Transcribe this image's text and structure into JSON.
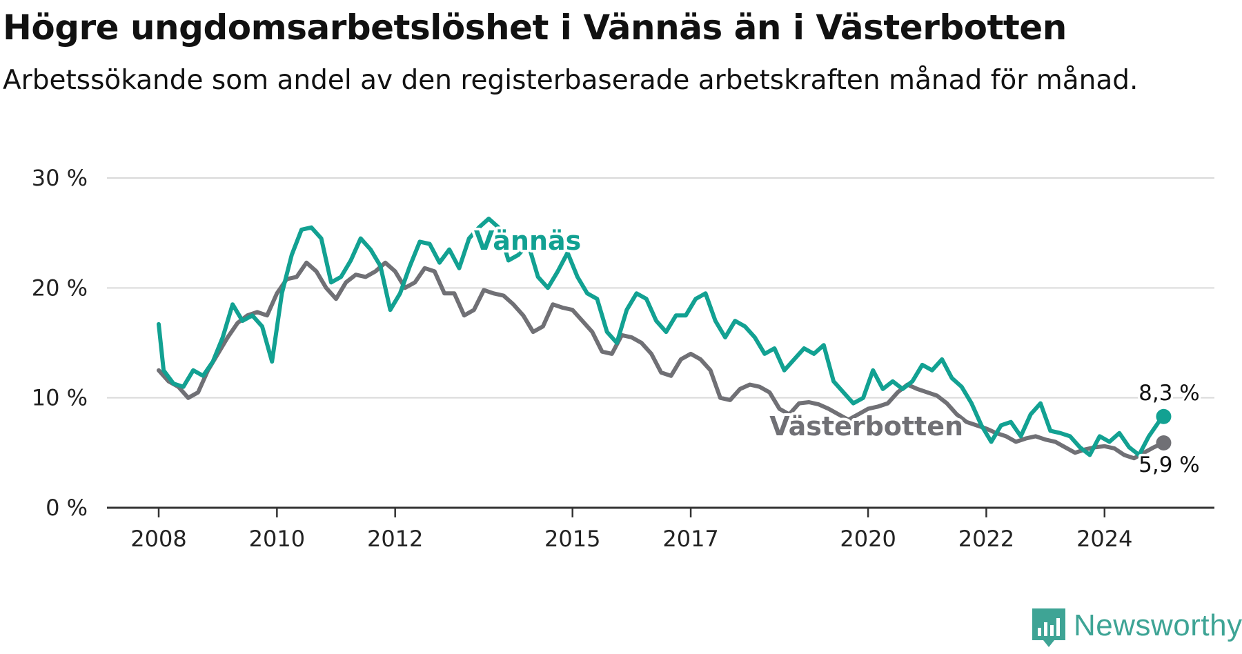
{
  "title": "Högre ungdomsarbetslöshet i Vännäs än i Västerbotten",
  "subtitle": "Arbetssökande som andel av den registerbaserade arbetskraften månad för månad.",
  "logo": {
    "text": "Newsworthy",
    "icon": "bar-chart-badge-icon"
  },
  "chart_data": {
    "type": "line",
    "title": "Högre ungdomsarbetslöshet i Vännäs än i Västerbotten",
    "subtitle": "Arbetssökande som andel av den registerbaserade arbetskraften månad för månad.",
    "ylim": [
      0,
      30
    ],
    "yticks": [
      0,
      10,
      20,
      30
    ],
    "ytick_labels": [
      "0 %",
      "10 %",
      "20 %",
      "30 %"
    ],
    "xlim": [
      "2008-01",
      "2025-12"
    ],
    "xticks": [
      "2008-01",
      "2010-01",
      "2012-01",
      "2015-01",
      "2017-01",
      "2020-01",
      "2022-01",
      "2024-01"
    ],
    "xtick_labels": [
      "2008",
      "2010",
      "2012",
      "2015",
      "2017",
      "2020",
      "2022",
      "2024"
    ],
    "grid": true,
    "legend": "direct labels on lines",
    "series": [
      {
        "name": "Västerbotten",
        "color": "#707075",
        "end_label": "5,9 %",
        "points": [
          [
            "2008-01",
            12.5
          ],
          [
            "2008-03",
            11.5
          ],
          [
            "2008-05",
            11.0
          ],
          [
            "2008-07",
            10.0
          ],
          [
            "2008-09",
            10.5
          ],
          [
            "2008-11",
            12.5
          ],
          [
            "2009-01",
            14.0
          ],
          [
            "2009-03",
            15.5
          ],
          [
            "2009-05",
            16.8
          ],
          [
            "2009-07",
            17.5
          ],
          [
            "2009-09",
            17.8
          ],
          [
            "2009-11",
            17.5
          ],
          [
            "2010-01",
            19.5
          ],
          [
            "2010-03",
            20.8
          ],
          [
            "2010-05",
            21.0
          ],
          [
            "2010-07",
            22.3
          ],
          [
            "2010-09",
            21.5
          ],
          [
            "2010-11",
            20.0
          ],
          [
            "2011-01",
            19.0
          ],
          [
            "2011-03",
            20.5
          ],
          [
            "2011-05",
            21.2
          ],
          [
            "2011-07",
            21.0
          ],
          [
            "2011-09",
            21.5
          ],
          [
            "2011-11",
            22.3
          ],
          [
            "2012-01",
            21.5
          ],
          [
            "2012-03",
            20.0
          ],
          [
            "2012-05",
            20.5
          ],
          [
            "2012-07",
            21.8
          ],
          [
            "2012-09",
            21.5
          ],
          [
            "2012-11",
            19.5
          ],
          [
            "2013-01",
            19.5
          ],
          [
            "2013-03",
            17.5
          ],
          [
            "2013-05",
            18.0
          ],
          [
            "2013-07",
            19.8
          ],
          [
            "2013-09",
            19.5
          ],
          [
            "2013-11",
            19.3
          ],
          [
            "2014-01",
            18.5
          ],
          [
            "2014-03",
            17.5
          ],
          [
            "2014-05",
            16.0
          ],
          [
            "2014-07",
            16.5
          ],
          [
            "2014-09",
            18.5
          ],
          [
            "2014-11",
            18.2
          ],
          [
            "2015-01",
            18.0
          ],
          [
            "2015-03",
            17.0
          ],
          [
            "2015-05",
            16.0
          ],
          [
            "2015-07",
            14.2
          ],
          [
            "2015-09",
            14.0
          ],
          [
            "2015-11",
            15.7
          ],
          [
            "2016-01",
            15.5
          ],
          [
            "2016-03",
            15.0
          ],
          [
            "2016-05",
            14.0
          ],
          [
            "2016-07",
            12.3
          ],
          [
            "2016-09",
            12.0
          ],
          [
            "2016-11",
            13.5
          ],
          [
            "2017-01",
            14.0
          ],
          [
            "2017-03",
            13.5
          ],
          [
            "2017-05",
            12.5
          ],
          [
            "2017-07",
            10.0
          ],
          [
            "2017-09",
            9.8
          ],
          [
            "2017-11",
            10.8
          ],
          [
            "2018-01",
            11.2
          ],
          [
            "2018-03",
            11.0
          ],
          [
            "2018-05",
            10.5
          ],
          [
            "2018-07",
            9.0
          ],
          [
            "2018-09",
            8.5
          ],
          [
            "2018-11",
            9.5
          ],
          [
            "2019-01",
            9.6
          ],
          [
            "2019-03",
            9.4
          ],
          [
            "2019-05",
            9.0
          ],
          [
            "2019-07",
            8.5
          ],
          [
            "2019-09",
            8.0
          ],
          [
            "2019-11",
            8.5
          ],
          [
            "2020-01",
            9.0
          ],
          [
            "2020-03",
            9.2
          ],
          [
            "2020-05",
            9.5
          ],
          [
            "2020-07",
            10.5
          ],
          [
            "2020-09",
            11.2
          ],
          [
            "2020-11",
            10.8
          ],
          [
            "2021-01",
            10.5
          ],
          [
            "2021-03",
            10.2
          ],
          [
            "2021-05",
            9.5
          ],
          [
            "2021-07",
            8.5
          ],
          [
            "2021-09",
            7.8
          ],
          [
            "2021-11",
            7.5
          ],
          [
            "2022-01",
            7.2
          ],
          [
            "2022-03",
            6.8
          ],
          [
            "2022-05",
            6.5
          ],
          [
            "2022-07",
            6.0
          ],
          [
            "2022-09",
            6.3
          ],
          [
            "2022-11",
            6.5
          ],
          [
            "2023-01",
            6.2
          ],
          [
            "2023-03",
            6.0
          ],
          [
            "2023-05",
            5.5
          ],
          [
            "2023-07",
            5.0
          ],
          [
            "2023-09",
            5.3
          ],
          [
            "2023-11",
            5.5
          ],
          [
            "2024-01",
            5.6
          ],
          [
            "2024-03",
            5.4
          ],
          [
            "2024-05",
            4.8
          ],
          [
            "2024-07",
            4.5
          ],
          [
            "2024-09",
            5.0
          ],
          [
            "2024-11",
            5.5
          ],
          [
            "2025-01",
            5.9
          ]
        ]
      },
      {
        "name": "Vännäs",
        "color": "#12a192",
        "end_label": "8,3 %",
        "points": [
          [
            "2008-01",
            16.7
          ],
          [
            "2008-02",
            12.5
          ],
          [
            "2008-04",
            11.3
          ],
          [
            "2008-06",
            11.0
          ],
          [
            "2008-08",
            12.5
          ],
          [
            "2008-10",
            12.0
          ],
          [
            "2008-12",
            13.3
          ],
          [
            "2009-02",
            15.5
          ],
          [
            "2009-04",
            18.5
          ],
          [
            "2009-06",
            17.0
          ],
          [
            "2009-08",
            17.5
          ],
          [
            "2009-10",
            16.5
          ],
          [
            "2009-12",
            13.3
          ],
          [
            "2010-02",
            19.5
          ],
          [
            "2010-04",
            23.0
          ],
          [
            "2010-06",
            25.3
          ],
          [
            "2010-08",
            25.5
          ],
          [
            "2010-10",
            24.5
          ],
          [
            "2010-12",
            20.5
          ],
          [
            "2011-02",
            21.0
          ],
          [
            "2011-04",
            22.5
          ],
          [
            "2011-06",
            24.5
          ],
          [
            "2011-08",
            23.5
          ],
          [
            "2011-10",
            22.0
          ],
          [
            "2011-12",
            18.0
          ],
          [
            "2012-02",
            19.5
          ],
          [
            "2012-04",
            22.0
          ],
          [
            "2012-06",
            24.2
          ],
          [
            "2012-08",
            24.0
          ],
          [
            "2012-10",
            22.3
          ],
          [
            "2012-12",
            23.5
          ],
          [
            "2013-02",
            21.8
          ],
          [
            "2013-04",
            24.5
          ],
          [
            "2013-06",
            25.5
          ],
          [
            "2013-08",
            26.3
          ],
          [
            "2013-10",
            25.5
          ],
          [
            "2013-12",
            22.5
          ],
          [
            "2014-02",
            23.0
          ],
          [
            "2014-04",
            24.0
          ],
          [
            "2014-06",
            21.0
          ],
          [
            "2014-08",
            20.0
          ],
          [
            "2014-10",
            21.5
          ],
          [
            "2014-12",
            23.2
          ],
          [
            "2015-02",
            21.0
          ],
          [
            "2015-04",
            19.5
          ],
          [
            "2015-06",
            19.0
          ],
          [
            "2015-08",
            16.0
          ],
          [
            "2015-10",
            15.0
          ],
          [
            "2015-12",
            18.0
          ],
          [
            "2016-02",
            19.5
          ],
          [
            "2016-04",
            19.0
          ],
          [
            "2016-06",
            17.0
          ],
          [
            "2016-08",
            16.0
          ],
          [
            "2016-10",
            17.5
          ],
          [
            "2016-12",
            17.5
          ],
          [
            "2017-02",
            19.0
          ],
          [
            "2017-04",
            19.5
          ],
          [
            "2017-06",
            17.0
          ],
          [
            "2017-08",
            15.5
          ],
          [
            "2017-10",
            17.0
          ],
          [
            "2017-12",
            16.5
          ],
          [
            "2018-02",
            15.5
          ],
          [
            "2018-04",
            14.0
          ],
          [
            "2018-06",
            14.5
          ],
          [
            "2018-08",
            12.5
          ],
          [
            "2018-10",
            13.5
          ],
          [
            "2018-12",
            14.5
          ],
          [
            "2019-02",
            14.0
          ],
          [
            "2019-04",
            14.8
          ],
          [
            "2019-06",
            11.5
          ],
          [
            "2019-08",
            10.5
          ],
          [
            "2019-10",
            9.5
          ],
          [
            "2019-12",
            10.0
          ],
          [
            "2020-02",
            12.5
          ],
          [
            "2020-04",
            10.8
          ],
          [
            "2020-06",
            11.5
          ],
          [
            "2020-08",
            10.8
          ],
          [
            "2020-10",
            11.5
          ],
          [
            "2020-12",
            13.0
          ],
          [
            "2021-02",
            12.5
          ],
          [
            "2021-04",
            13.5
          ],
          [
            "2021-06",
            11.8
          ],
          [
            "2021-08",
            11.0
          ],
          [
            "2021-10",
            9.5
          ],
          [
            "2021-12",
            7.5
          ],
          [
            "2022-02",
            6.0
          ],
          [
            "2022-04",
            7.5
          ],
          [
            "2022-06",
            7.8
          ],
          [
            "2022-08",
            6.5
          ],
          [
            "2022-10",
            8.5
          ],
          [
            "2022-12",
            9.5
          ],
          [
            "2023-02",
            7.0
          ],
          [
            "2023-04",
            6.8
          ],
          [
            "2023-06",
            6.5
          ],
          [
            "2023-08",
            5.5
          ],
          [
            "2023-10",
            4.8
          ],
          [
            "2023-12",
            6.5
          ],
          [
            "2024-02",
            6.0
          ],
          [
            "2024-04",
            6.8
          ],
          [
            "2024-06",
            5.5
          ],
          [
            "2024-08",
            4.8
          ],
          [
            "2024-10",
            6.5
          ],
          [
            "2024-12",
            7.8
          ],
          [
            "2025-01",
            8.3
          ]
        ]
      }
    ]
  }
}
